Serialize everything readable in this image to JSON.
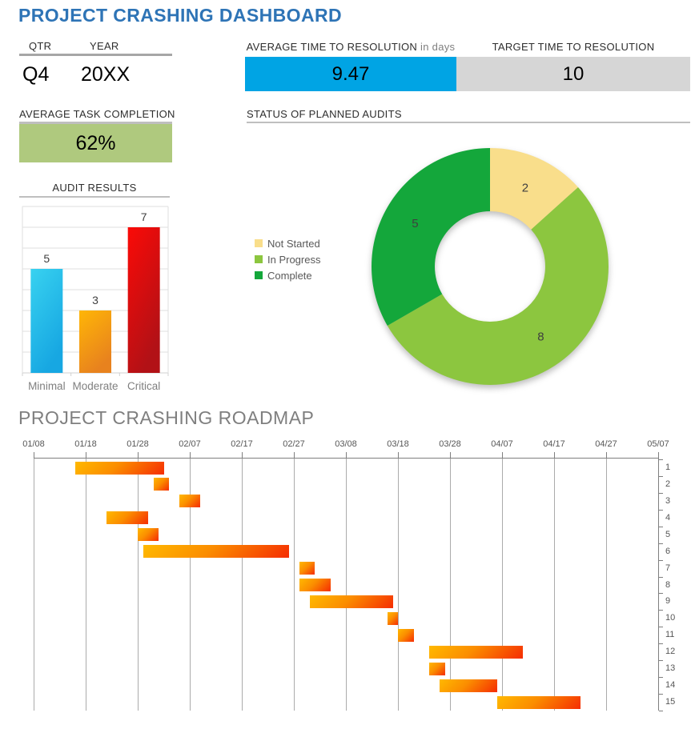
{
  "header": {
    "title": "PROJECT CRASHING DASHBOARD"
  },
  "qtr_year": {
    "qtr_label": "QTR",
    "year_label": "YEAR",
    "qtr_value": "Q4",
    "year_value": "20XX"
  },
  "resolution": {
    "avg_label": "AVERAGE TIME TO RESOLUTION",
    "avg_unit": "in days",
    "avg_value": "9.47",
    "target_label": "TARGET TIME TO RESOLUTION",
    "target_value": "10"
  },
  "task_completion": {
    "label": "AVERAGE TASK COMPLETION",
    "value": "62%"
  },
  "audit_results": {
    "title": "AUDIT RESULTS"
  },
  "planned_audits": {
    "title": "STATUS OF PLANNED AUDITS"
  },
  "roadmap": {
    "title": "PROJECT CRASHING ROADMAP"
  },
  "colors": {
    "title_blue": "#2E74B6",
    "metric_blue": "#00A4E4",
    "metric_gray": "#D6D6D6",
    "completion_green": "#AFC97E",
    "donut_not_started": "#F9DE8B",
    "donut_in_progress": "#8CC63F",
    "donut_complete": "#14A73B",
    "bar_minimal_top": "#38D2F0",
    "bar_minimal_bottom": "#17A7E2",
    "bar_moderate_top": "#FFB606",
    "bar_moderate_bottom": "#E8821E",
    "bar_critical_top": "#FB0A07",
    "bar_critical_bottom": "#B21116",
    "gantt_gradient_start": "#FFB900",
    "gantt_gradient_end": "#F52D02"
  },
  "chart_data": [
    {
      "id": "audit-results",
      "type": "bar",
      "title": "AUDIT RESULTS",
      "categories": [
        "Minimal",
        "Moderate",
        "Critical"
      ],
      "values": [
        5,
        3,
        7
      ],
      "data_labels": [
        "5",
        "3",
        "7"
      ],
      "xlabel": "",
      "ylabel": "",
      "ylim": [
        0,
        8
      ],
      "grid": true,
      "legend_position": "none"
    },
    {
      "id": "status-of-planned-audits",
      "type": "pie",
      "subtype": "donut",
      "title": "STATUS OF PLANNED AUDITS",
      "labels": [
        "Not Started",
        "In Progress",
        "Complete"
      ],
      "values": [
        2,
        8,
        5
      ],
      "data_labels": [
        "2",
        "8",
        "5"
      ],
      "colors": [
        "#F9DE8B",
        "#8CC63F",
        "#14A73B"
      ],
      "donut_hole_ratio": 0.466,
      "start_angle_deg": 0,
      "direction": "clockwise",
      "legend_position": "left"
    },
    {
      "id": "project-crashing-roadmap",
      "type": "bar",
      "subtype": "gantt",
      "title": "PROJECT CRASHING ROADMAP",
      "x_axis_labels": [
        "01/08",
        "01/18",
        "01/28",
        "02/07",
        "02/17",
        "02/27",
        "03/08",
        "03/18",
        "03/28",
        "04/07",
        "04/17",
        "04/27",
        "05/07"
      ],
      "x_range_days": [
        0,
        120
      ],
      "row_labels": [
        "1",
        "2",
        "3",
        "4",
        "5",
        "6",
        "7",
        "8",
        "9",
        "10",
        "11",
        "12",
        "13",
        "14",
        "15"
      ],
      "tasks": [
        {
          "row": 1,
          "start": "01/16",
          "end": "02/02",
          "start_day": 8,
          "end_day": 25
        },
        {
          "row": 2,
          "start": "01/31",
          "end": "02/03",
          "start_day": 23,
          "end_day": 26
        },
        {
          "row": 3,
          "start": "02/05",
          "end": "02/09",
          "start_day": 28,
          "end_day": 32
        },
        {
          "row": 4,
          "start": "01/22",
          "end": "01/30",
          "start_day": 14,
          "end_day": 22
        },
        {
          "row": 5,
          "start": "01/28",
          "end": "02/01",
          "start_day": 20,
          "end_day": 24
        },
        {
          "row": 6,
          "start": "01/29",
          "end": "02/26",
          "start_day": 21,
          "end_day": 49
        },
        {
          "row": 7,
          "start": "02/28",
          "end": "03/03",
          "start_day": 51,
          "end_day": 54
        },
        {
          "row": 8,
          "start": "02/28",
          "end": "03/06",
          "start_day": 51,
          "end_day": 57
        },
        {
          "row": 9,
          "start": "03/02",
          "end": "03/18",
          "start_day": 53,
          "end_day": 69
        },
        {
          "row": 10,
          "start": "03/17",
          "end": "03/19",
          "start_day": 68,
          "end_day": 70
        },
        {
          "row": 11,
          "start": "03/19",
          "end": "03/22",
          "start_day": 70,
          "end_day": 73
        },
        {
          "row": 12,
          "start": "03/25",
          "end": "04/12",
          "start_day": 76,
          "end_day": 94
        },
        {
          "row": 13,
          "start": "03/25",
          "end": "03/28",
          "start_day": 76,
          "end_day": 79
        },
        {
          "row": 14,
          "start": "03/27",
          "end": "04/07",
          "start_day": 78,
          "end_day": 89
        },
        {
          "row": 15,
          "start": "04/07",
          "end": "04/23",
          "start_day": 89,
          "end_day": 105
        }
      ]
    }
  ]
}
